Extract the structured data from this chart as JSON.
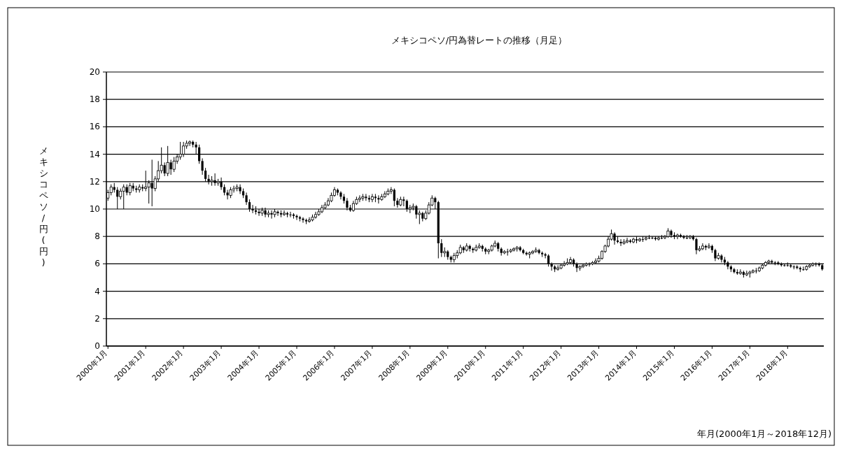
{
  "chart_data": {
    "type": "candlestick",
    "title": "メキシコペソ/円為替レートの推移（月足）",
    "annotations": [
      "年月(2000年1月～2018年12月)"
    ],
    "ylabel": "メキシコペソ/円(円)",
    "color": "#000000",
    "ylim": [
      0,
      20
    ],
    "yticks": [
      0,
      2,
      4,
      6,
      8,
      10,
      12,
      14,
      16,
      18,
      20
    ],
    "grid": "y",
    "categories": [
      "2000年1月",
      null,
      null,
      null,
      null,
      null,
      null,
      null,
      null,
      null,
      null,
      null,
      "2001年1月",
      null,
      null,
      null,
      null,
      null,
      null,
      null,
      null,
      null,
      null,
      null,
      "2002年1月",
      null,
      null,
      null,
      null,
      null,
      null,
      null,
      null,
      null,
      null,
      null,
      "2003年1月",
      null,
      null,
      null,
      null,
      null,
      null,
      null,
      null,
      null,
      null,
      null,
      "2004年1月",
      null,
      null,
      null,
      null,
      null,
      null,
      null,
      null,
      null,
      null,
      null,
      "2005年1月",
      null,
      null,
      null,
      null,
      null,
      null,
      null,
      null,
      null,
      null,
      null,
      "2006年1月",
      null,
      null,
      null,
      null,
      null,
      null,
      null,
      null,
      null,
      null,
      null,
      "2007年1月",
      null,
      null,
      null,
      null,
      null,
      null,
      null,
      null,
      null,
      null,
      null,
      "2008年1月",
      null,
      null,
      null,
      null,
      null,
      null,
      null,
      null,
      null,
      null,
      null,
      "2009年1月",
      null,
      null,
      null,
      null,
      null,
      null,
      null,
      null,
      null,
      null,
      null,
      "2010年1月",
      null,
      null,
      null,
      null,
      null,
      null,
      null,
      null,
      null,
      null,
      null,
      "2011年1月",
      null,
      null,
      null,
      null,
      null,
      null,
      null,
      null,
      null,
      null,
      null,
      "2012年1月",
      null,
      null,
      null,
      null,
      null,
      null,
      null,
      null,
      null,
      null,
      null,
      "2013年1月",
      null,
      null,
      null,
      null,
      null,
      null,
      null,
      null,
      null,
      null,
      null,
      "2014年1月",
      null,
      null,
      null,
      null,
      null,
      null,
      null,
      null,
      null,
      null,
      null,
      "2015年1月",
      null,
      null,
      null,
      null,
      null,
      null,
      null,
      null,
      null,
      null,
      null,
      "2016年1月",
      null,
      null,
      null,
      null,
      null,
      null,
      null,
      null,
      null,
      null,
      null,
      "2017年1月",
      null,
      null,
      null,
      null,
      null,
      null,
      null,
      null,
      null,
      null,
      null,
      "2018年1月",
      null,
      null,
      null,
      null,
      null,
      null,
      null,
      null,
      null,
      null,
      null
    ],
    "ohlc": [
      [
        10.8,
        11.4,
        10.6,
        11.2
      ],
      [
        11.2,
        11.8,
        11.0,
        11.6
      ],
      [
        11.6,
        11.9,
        11.2,
        11.4
      ],
      [
        11.4,
        11.6,
        10.0,
        10.9
      ],
      [
        10.9,
        11.5,
        10.7,
        11.3
      ],
      [
        11.3,
        11.8,
        10.0,
        11.6
      ],
      [
        11.6,
        11.8,
        11.0,
        11.2
      ],
      [
        11.2,
        11.9,
        11.0,
        11.7
      ],
      [
        11.7,
        11.9,
        11.3,
        11.5
      ],
      [
        11.5,
        11.7,
        11.2,
        11.4
      ],
      [
        11.4,
        11.8,
        11.2,
        11.6
      ],
      [
        11.6,
        11.8,
        11.3,
        11.5
      ],
      [
        11.5,
        12.8,
        11.3,
        11.6
      ],
      [
        11.6,
        12.1,
        10.4,
        11.9
      ],
      [
        11.9,
        13.6,
        10.2,
        11.5
      ],
      [
        11.5,
        12.4,
        11.3,
        12.2
      ],
      [
        12.2,
        13.5,
        12.0,
        12.8
      ],
      [
        12.8,
        14.5,
        12.6,
        13.2
      ],
      [
        13.2,
        13.4,
        12.4,
        12.6
      ],
      [
        12.6,
        14.6,
        12.4,
        13.4
      ],
      [
        13.4,
        13.6,
        12.5,
        12.9
      ],
      [
        12.9,
        13.8,
        12.7,
        13.5
      ],
      [
        13.5,
        14.0,
        13.3,
        13.8
      ],
      [
        13.8,
        14.9,
        13.6,
        14.0
      ],
      [
        14.0,
        14.9,
        13.8,
        14.6
      ],
      [
        14.6,
        15.0,
        14.4,
        14.8
      ],
      [
        14.8,
        15.0,
        14.6,
        14.9
      ],
      [
        14.9,
        15.0,
        14.5,
        14.7
      ],
      [
        14.7,
        14.9,
        14.0,
        14.5
      ],
      [
        14.5,
        14.7,
        13.3,
        13.5
      ],
      [
        13.5,
        13.7,
        12.5,
        12.8
      ],
      [
        12.8,
        13.0,
        12.0,
        12.2
      ],
      [
        12.2,
        12.5,
        11.8,
        12.0
      ],
      [
        12.0,
        12.4,
        11.7,
        12.1
      ],
      [
        12.1,
        12.6,
        11.7,
        11.9
      ],
      [
        11.9,
        12.2,
        11.7,
        12.0
      ],
      [
        12.0,
        12.3,
        11.4,
        11.6
      ],
      [
        11.6,
        11.8,
        11.0,
        11.2
      ],
      [
        11.2,
        11.4,
        10.7,
        11.0
      ],
      [
        11.0,
        11.6,
        10.8,
        11.4
      ],
      [
        11.4,
        11.7,
        11.2,
        11.5
      ],
      [
        11.5,
        11.8,
        11.3,
        11.6
      ],
      [
        11.6,
        11.8,
        11.1,
        11.3
      ],
      [
        11.3,
        11.5,
        10.8,
        11.0
      ],
      [
        11.0,
        11.2,
        10.3,
        10.5
      ],
      [
        10.5,
        10.7,
        9.8,
        10.0
      ],
      [
        10.0,
        10.3,
        9.7,
        9.9
      ],
      [
        9.9,
        10.2,
        9.6,
        9.8
      ],
      [
        9.8,
        10.0,
        9.5,
        9.7
      ],
      [
        9.7,
        10.1,
        9.5,
        9.9
      ],
      [
        9.9,
        10.1,
        9.4,
        9.6
      ],
      [
        9.6,
        9.9,
        9.4,
        9.7
      ],
      [
        9.7,
        9.9,
        9.3,
        9.6
      ],
      [
        9.6,
        10.0,
        9.4,
        9.8
      ],
      [
        9.8,
        9.9,
        9.5,
        9.7
      ],
      [
        9.7,
        9.9,
        9.4,
        9.6
      ],
      [
        9.6,
        9.9,
        9.5,
        9.7
      ],
      [
        9.7,
        9.8,
        9.4,
        9.6
      ],
      [
        9.6,
        9.8,
        9.4,
        9.6
      ],
      [
        9.6,
        9.7,
        9.3,
        9.5
      ],
      [
        9.5,
        9.6,
        9.2,
        9.4
      ],
      [
        9.4,
        9.5,
        9.1,
        9.3
      ],
      [
        9.3,
        9.4,
        9.0,
        9.2
      ],
      [
        9.2,
        9.3,
        8.9,
        9.1
      ],
      [
        9.1,
        9.4,
        9.0,
        9.2
      ],
      [
        9.2,
        9.6,
        9.1,
        9.4
      ],
      [
        9.4,
        9.8,
        9.3,
        9.6
      ],
      [
        9.6,
        10.0,
        9.5,
        9.8
      ],
      [
        9.8,
        10.3,
        9.7,
        10.1
      ],
      [
        10.1,
        10.5,
        10.0,
        10.3
      ],
      [
        10.3,
        10.8,
        10.2,
        10.6
      ],
      [
        10.6,
        11.2,
        10.5,
        11.0
      ],
      [
        11.0,
        11.6,
        10.9,
        11.4
      ],
      [
        11.4,
        11.5,
        11.0,
        11.2
      ],
      [
        11.2,
        11.3,
        10.7,
        10.9
      ],
      [
        10.9,
        11.1,
        10.4,
        10.6
      ],
      [
        10.6,
        10.8,
        9.9,
        10.1
      ],
      [
        10.1,
        10.3,
        9.8,
        9.9
      ],
      [
        9.9,
        10.6,
        9.8,
        10.4
      ],
      [
        10.4,
        10.9,
        10.3,
        10.7
      ],
      [
        10.7,
        11.0,
        10.5,
        10.8
      ],
      [
        10.8,
        11.1,
        10.6,
        10.9
      ],
      [
        10.9,
        11.1,
        10.6,
        10.8
      ],
      [
        10.8,
        11.0,
        10.5,
        10.7
      ],
      [
        10.7,
        11.1,
        10.5,
        10.9
      ],
      [
        10.9,
        11.1,
        10.5,
        10.8
      ],
      [
        10.8,
        11.0,
        10.4,
        10.7
      ],
      [
        10.7,
        11.1,
        10.6,
        10.9
      ],
      [
        10.9,
        11.3,
        10.8,
        11.1
      ],
      [
        11.1,
        11.5,
        11.0,
        11.3
      ],
      [
        11.3,
        11.6,
        11.1,
        11.4
      ],
      [
        11.4,
        11.5,
        10.2,
        10.6
      ],
      [
        10.6,
        10.8,
        10.1,
        10.3
      ],
      [
        10.3,
        10.9,
        10.2,
        10.7
      ],
      [
        10.7,
        10.9,
        10.2,
        10.6
      ],
      [
        10.6,
        10.7,
        9.8,
        10.0
      ],
      [
        10.0,
        10.3,
        9.7,
        10.1
      ],
      [
        10.1,
        10.4,
        9.9,
        10.2
      ],
      [
        10.2,
        10.3,
        9.3,
        9.6
      ],
      [
        9.6,
        9.9,
        8.9,
        9.7
      ],
      [
        9.7,
        9.8,
        9.1,
        9.3
      ],
      [
        9.3,
        9.9,
        9.2,
        9.7
      ],
      [
        9.7,
        10.5,
        9.6,
        10.3
      ],
      [
        10.3,
        11.0,
        10.2,
        10.8
      ],
      [
        10.8,
        10.9,
        10.0,
        10.5
      ],
      [
        10.5,
        10.6,
        6.4,
        7.5
      ],
      [
        7.5,
        7.8,
        6.5,
        6.8
      ],
      [
        6.8,
        7.2,
        6.5,
        6.9
      ],
      [
        6.9,
        7.0,
        6.3,
        6.5
      ],
      [
        6.5,
        6.6,
        6.1,
        6.3
      ],
      [
        6.3,
        6.8,
        6.1,
        6.6
      ],
      [
        6.6,
        7.0,
        6.4,
        6.8
      ],
      [
        6.8,
        7.4,
        6.7,
        7.2
      ],
      [
        7.2,
        7.3,
        6.8,
        7.0
      ],
      [
        7.0,
        7.5,
        6.9,
        7.3
      ],
      [
        7.3,
        7.4,
        6.9,
        7.1
      ],
      [
        7.1,
        7.2,
        6.8,
        7.0
      ],
      [
        7.0,
        7.4,
        6.9,
        7.2
      ],
      [
        7.2,
        7.5,
        7.1,
        7.3
      ],
      [
        7.3,
        7.4,
        6.9,
        7.1
      ],
      [
        7.1,
        7.2,
        6.7,
        6.9
      ],
      [
        6.9,
        7.1,
        6.7,
        7.0
      ],
      [
        7.0,
        7.4,
        6.9,
        7.3
      ],
      [
        7.3,
        7.7,
        7.2,
        7.5
      ],
      [
        7.5,
        7.6,
        6.9,
        7.1
      ],
      [
        7.1,
        7.2,
        6.6,
        6.8
      ],
      [
        6.8,
        7.0,
        6.7,
        6.9
      ],
      [
        6.9,
        7.1,
        6.6,
        6.9
      ],
      [
        6.9,
        7.1,
        6.8,
        7.0
      ],
      [
        7.0,
        7.2,
        6.9,
        7.1
      ],
      [
        7.1,
        7.3,
        6.9,
        7.2
      ],
      [
        7.2,
        7.3,
        6.9,
        7.0
      ],
      [
        7.0,
        7.1,
        6.7,
        6.8
      ],
      [
        6.8,
        6.9,
        6.6,
        6.7
      ],
      [
        6.7,
        6.9,
        6.4,
        6.8
      ],
      [
        6.8,
        7.0,
        6.7,
        6.9
      ],
      [
        6.9,
        7.2,
        6.8,
        7.0
      ],
      [
        7.0,
        7.1,
        6.7,
        6.8
      ],
      [
        6.8,
        6.9,
        6.5,
        6.7
      ],
      [
        6.7,
        6.8,
        6.4,
        6.6
      ],
      [
        6.6,
        6.7,
        5.8,
        6.0
      ],
      [
        6.0,
        6.1,
        5.5,
        5.8
      ],
      [
        5.8,
        5.9,
        5.4,
        5.6
      ],
      [
        5.6,
        5.9,
        5.5,
        5.7
      ],
      [
        5.7,
        6.0,
        5.6,
        5.9
      ],
      [
        5.9,
        6.2,
        5.8,
        6.0
      ],
      [
        6.0,
        6.4,
        5.9,
        6.1
      ],
      [
        6.1,
        6.5,
        6.0,
        6.3
      ],
      [
        6.3,
        6.4,
        5.8,
        6.0
      ],
      [
        6.0,
        6.1,
        5.4,
        5.7
      ],
      [
        5.7,
        5.9,
        5.5,
        5.8
      ],
      [
        5.8,
        6.0,
        5.7,
        5.9
      ],
      [
        5.9,
        6.1,
        5.8,
        6.0
      ],
      [
        6.0,
        6.1,
        5.8,
        6.0
      ],
      [
        6.0,
        6.2,
        5.9,
        6.1
      ],
      [
        6.1,
        6.4,
        6.0,
        6.2
      ],
      [
        6.2,
        6.6,
        6.1,
        6.4
      ],
      [
        6.4,
        7.0,
        6.3,
        6.9
      ],
      [
        6.9,
        7.4,
        6.8,
        7.3
      ],
      [
        7.3,
        8.0,
        7.2,
        7.8
      ],
      [
        7.8,
        8.5,
        7.7,
        8.2
      ],
      [
        8.2,
        8.3,
        7.4,
        7.7
      ],
      [
        7.7,
        8.0,
        7.5,
        7.6
      ],
      [
        7.6,
        7.8,
        7.3,
        7.5
      ],
      [
        7.5,
        7.8,
        7.4,
        7.6
      ],
      [
        7.6,
        7.9,
        7.5,
        7.7
      ],
      [
        7.7,
        7.8,
        7.5,
        7.6
      ],
      [
        7.6,
        7.9,
        7.5,
        7.8
      ],
      [
        7.8,
        8.0,
        7.5,
        7.7
      ],
      [
        7.7,
        7.9,
        7.6,
        7.8
      ],
      [
        7.8,
        8.0,
        7.6,
        7.8
      ],
      [
        7.8,
        8.0,
        7.7,
        7.9
      ],
      [
        7.9,
        8.1,
        7.8,
        7.9
      ],
      [
        7.9,
        8.0,
        7.8,
        7.9
      ],
      [
        7.9,
        8.0,
        7.7,
        7.8
      ],
      [
        7.8,
        8.0,
        7.7,
        7.9
      ],
      [
        7.9,
        8.1,
        7.8,
        7.9
      ],
      [
        7.9,
        8.1,
        7.8,
        8.0
      ],
      [
        8.0,
        8.6,
        7.9,
        8.4
      ],
      [
        8.4,
        8.5,
        7.9,
        8.1
      ],
      [
        8.1,
        8.3,
        7.8,
        8.0
      ],
      [
        8.0,
        8.2,
        7.8,
        8.1
      ],
      [
        8.1,
        8.2,
        7.9,
        8.0
      ],
      [
        8.0,
        8.1,
        7.8,
        7.9
      ],
      [
        7.9,
        8.1,
        7.8,
        7.9
      ],
      [
        7.9,
        8.1,
        7.8,
        8.0
      ],
      [
        8.0,
        8.1,
        7.7,
        7.8
      ],
      [
        7.8,
        7.9,
        6.7,
        7.0
      ],
      [
        7.0,
        7.3,
        6.9,
        7.1
      ],
      [
        7.1,
        7.5,
        7.0,
        7.3
      ],
      [
        7.3,
        7.4,
        7.0,
        7.2
      ],
      [
        7.2,
        7.5,
        7.1,
        7.3
      ],
      [
        7.3,
        7.4,
        6.8,
        7.0
      ],
      [
        7.0,
        7.1,
        6.2,
        6.4
      ],
      [
        6.4,
        6.8,
        6.3,
        6.6
      ],
      [
        6.6,
        6.7,
        6.1,
        6.3
      ],
      [
        6.3,
        6.5,
        5.9,
        6.1
      ],
      [
        6.1,
        6.2,
        5.6,
        5.8
      ],
      [
        5.8,
        5.9,
        5.4,
        5.6
      ],
      [
        5.6,
        5.7,
        5.3,
        5.4
      ],
      [
        5.4,
        5.6,
        5.2,
        5.3
      ],
      [
        5.3,
        5.6,
        5.2,
        5.4
      ],
      [
        5.4,
        5.5,
        5.0,
        5.2
      ],
      [
        5.2,
        5.5,
        5.1,
        5.3
      ],
      [
        5.3,
        5.5,
        5.0,
        5.4
      ],
      [
        5.4,
        5.6,
        5.3,
        5.5
      ],
      [
        5.5,
        5.7,
        5.3,
        5.5
      ],
      [
        5.5,
        5.8,
        5.4,
        5.7
      ],
      [
        5.7,
        6.0,
        5.6,
        5.9
      ],
      [
        5.9,
        6.2,
        5.8,
        6.1
      ],
      [
        6.1,
        6.3,
        6.0,
        6.2
      ],
      [
        6.2,
        6.3,
        6.0,
        6.1
      ],
      [
        6.1,
        6.2,
        5.9,
        6.1
      ],
      [
        6.1,
        6.2,
        5.9,
        6.0
      ],
      [
        6.0,
        6.1,
        5.8,
        5.9
      ],
      [
        5.9,
        6.0,
        5.8,
        5.9
      ],
      [
        5.9,
        6.1,
        5.8,
        5.9
      ],
      [
        5.9,
        6.0,
        5.7,
        5.8
      ],
      [
        5.8,
        5.9,
        5.6,
        5.8
      ],
      [
        5.8,
        5.9,
        5.6,
        5.7
      ],
      [
        5.7,
        5.8,
        5.4,
        5.6
      ],
      [
        5.6,
        5.8,
        5.5,
        5.6
      ],
      [
        5.6,
        5.9,
        5.5,
        5.8
      ],
      [
        5.8,
        6.0,
        5.7,
        5.9
      ],
      [
        5.9,
        6.1,
        5.8,
        6.0
      ],
      [
        6.0,
        6.1,
        5.8,
        6.0
      ],
      [
        6.0,
        6.1,
        5.8,
        5.9
      ],
      [
        5.9,
        6.0,
        5.5,
        5.6
      ]
    ]
  }
}
